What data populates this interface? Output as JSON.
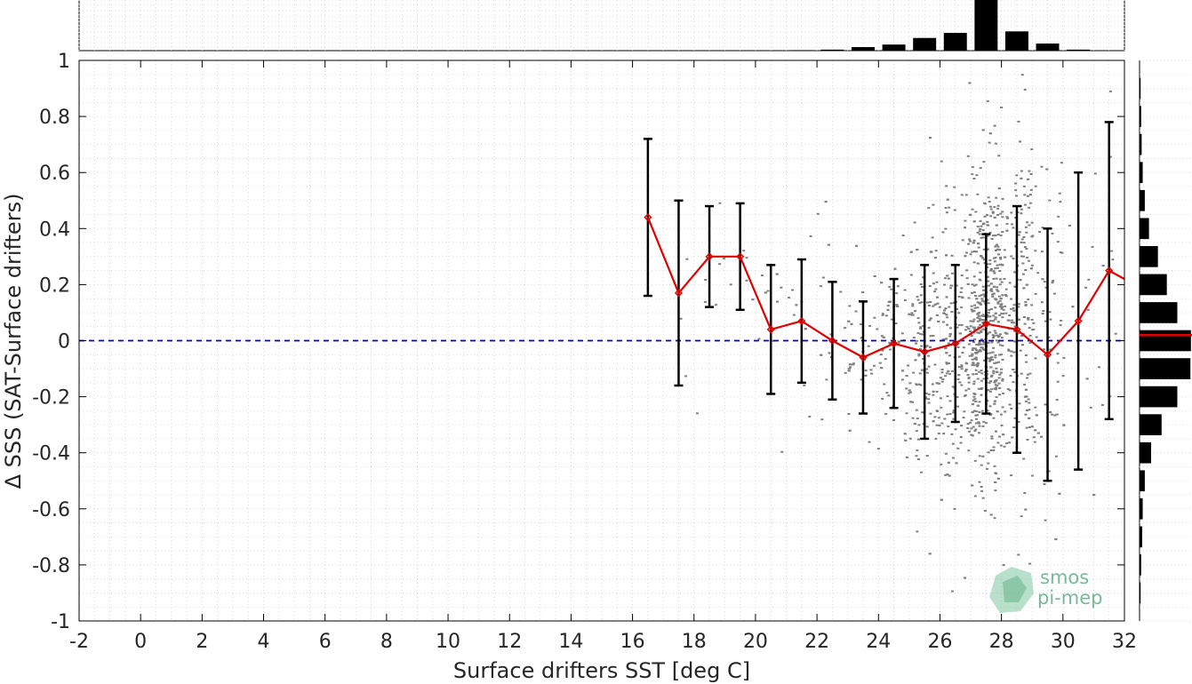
{
  "chart_data": {
    "type": "scatter",
    "xlabel": "Surface drifters SST [deg C]",
    "ylabel": "Δ SSS (SAT-Surface drifters)",
    "xlim": [
      -2,
      32
    ],
    "ylim": [
      -1,
      1
    ],
    "x_ticks": [
      "-2",
      "0",
      "2",
      "4",
      "6",
      "8",
      "10",
      "12",
      "14",
      "16",
      "18",
      "20",
      "22",
      "24",
      "26",
      "28",
      "30",
      "32"
    ],
    "y_ticks": [
      "1",
      "0.8",
      "0.6",
      "0.4",
      "0.2",
      "0",
      "-0.2",
      "-0.4",
      "-0.6",
      "-0.8",
      "-1"
    ],
    "grid": true,
    "zero_line": {
      "y": 0,
      "color": "#0000cc",
      "style": "dashed"
    },
    "scatter_color": "#808080",
    "binned_series": {
      "color": "#e00000",
      "x": [
        16.5,
        17.5,
        18.5,
        19.5,
        20.5,
        21.5,
        22.5,
        23.5,
        24.5,
        25.5,
        26.5,
        27.5,
        28.5,
        29.5,
        30.5,
        31.5,
        32.0
      ],
      "mean": [
        0.44,
        0.17,
        0.3,
        0.3,
        0.04,
        0.07,
        0.0,
        -0.06,
        -0.01,
        -0.04,
        -0.01,
        0.06,
        0.04,
        -0.05,
        0.07,
        0.25,
        0.22
      ],
      "std": [
        0.28,
        0.33,
        0.18,
        0.19,
        0.23,
        0.22,
        0.21,
        0.2,
        0.23,
        0.31,
        0.28,
        0.32,
        0.44,
        0.45,
        0.53,
        0.53,
        null
      ]
    },
    "errorbar_color": "#000000",
    "x_histogram": {
      "bins": [
        21.5,
        22.5,
        23.5,
        24.5,
        25.5,
        26.5,
        27.5,
        28.5,
        29.5,
        30.5
      ],
      "values": [
        0.01,
        0.02,
        0.07,
        0.12,
        0.25,
        0.35,
        1.0,
        0.38,
        0.14,
        0.02
      ]
    },
    "y_histogram": {
      "bins": [
        0.9,
        0.8,
        0.7,
        0.6,
        0.5,
        0.4,
        0.3,
        0.2,
        0.1,
        0.0,
        -0.1,
        -0.2,
        -0.3,
        -0.4,
        -0.5,
        -0.6,
        -0.7,
        -0.8,
        -0.9
      ],
      "values": [
        0.02,
        0.03,
        0.04,
        0.06,
        0.1,
        0.18,
        0.35,
        0.52,
        0.72,
        0.98,
        0.97,
        0.72,
        0.42,
        0.22,
        0.1,
        0.06,
        0.05,
        0.03,
        0.02
      ],
      "mean_marker": {
        "y": 0.02,
        "color": "#e00000"
      }
    }
  },
  "logo": {
    "line1": "smos",
    "line2": "pi-mep"
  }
}
